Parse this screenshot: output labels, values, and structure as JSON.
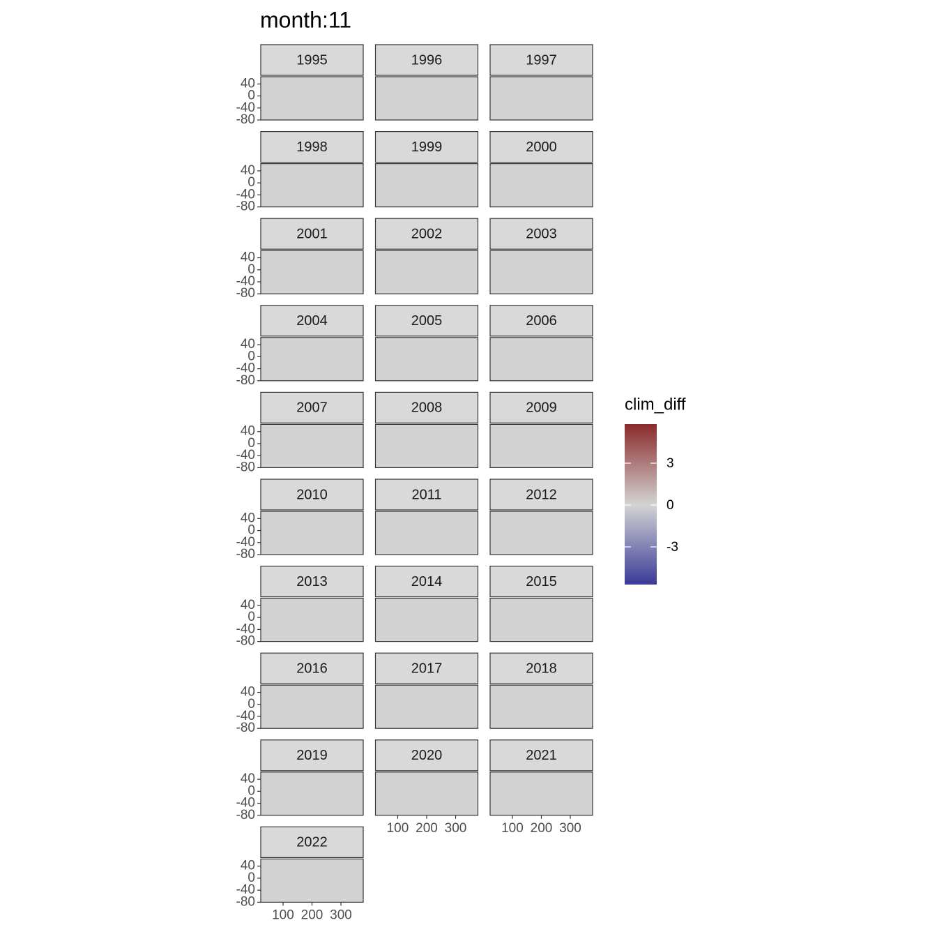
{
  "chart_data": {
    "type": "facet-map",
    "title": "month:11",
    "facets": [
      "1995",
      "1996",
      "1997",
      "1998",
      "1999",
      "2000",
      "2001",
      "2002",
      "2003",
      "2004",
      "2005",
      "2006",
      "2007",
      "2008",
      "2009",
      "2010",
      "2011",
      "2012",
      "2013",
      "2014",
      "2015",
      "2016",
      "2017",
      "2018",
      "2019",
      "2020",
      "2021",
      "2022"
    ],
    "ncol": 3,
    "xlim": [
      23,
      377
    ],
    "xticks": [
      100,
      200,
      300
    ],
    "ylim": [
      -80,
      64
    ],
    "yticks": [
      40,
      0,
      -40,
      -80
    ],
    "panel_color": "#d3d3d3",
    "legend": {
      "title": "clim_diff",
      "limits": [
        -5.7,
        5.8
      ],
      "ticks": [
        3,
        0,
        -3
      ],
      "colors": {
        "low": "#3a3a98",
        "mid": "#d3d3d3",
        "high": "#8a2a2a"
      }
    }
  }
}
